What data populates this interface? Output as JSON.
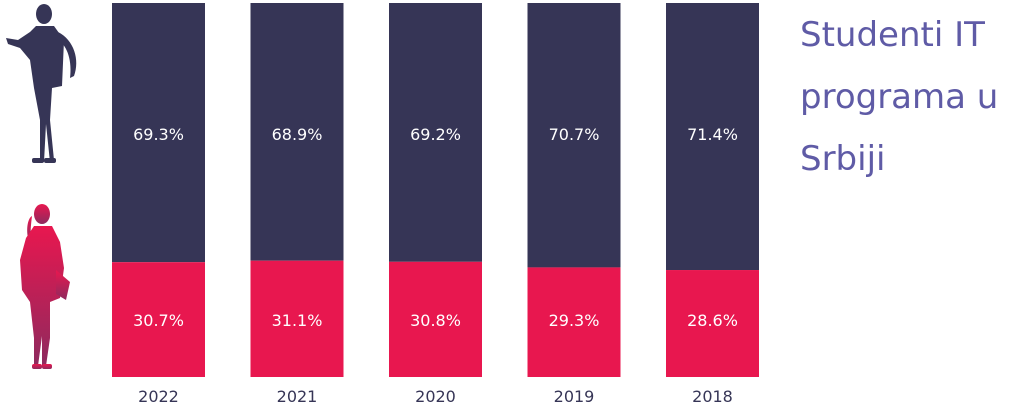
{
  "chart_data": {
    "type": "bar",
    "stacked": true,
    "title": "Studenti IT programa u Srbiji",
    "categories": [
      "2022",
      "2021",
      "2020",
      "2019",
      "2018"
    ],
    "series": [
      {
        "key": "female",
        "values": [
          30.7,
          31.1,
          30.8,
          29.3,
          28.6
        ],
        "labels": [
          "30.7%",
          "31.1%",
          "30.8%",
          "29.3%",
          "28.6%"
        ],
        "color": "#e8174f"
      },
      {
        "key": "male",
        "values": [
          69.3,
          68.9,
          69.2,
          70.7,
          71.4
        ],
        "labels": [
          "69.3%",
          "68.9%",
          "69.2%",
          "70.7%",
          "71.4%"
        ],
        "color": "#363556"
      }
    ],
    "ylim": [
      0,
      100
    ],
    "grid": false,
    "label_color": "#ffffff",
    "tick_color": "#363556"
  },
  "legend_icons": [
    {
      "name": "male-student-icon",
      "color": "#363556"
    },
    {
      "name": "female-student-icon",
      "color": "#c2185b"
    }
  ]
}
